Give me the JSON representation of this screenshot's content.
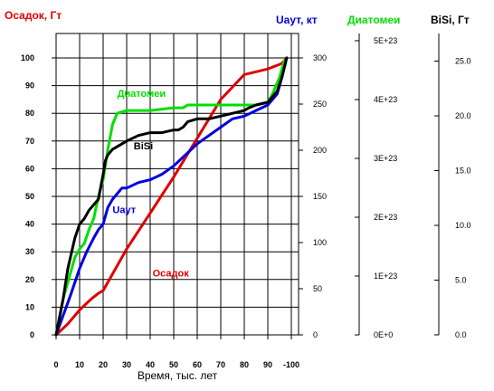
{
  "chart_data": {
    "type": "line",
    "xlabel": "Время,  тыс. лет",
    "axes": {
      "osadok": {
        "label": "Осадок, Гт",
        "color": "#e00000",
        "ticks": [
          "0",
          "10",
          "20",
          "30",
          "40",
          "50",
          "60",
          "70",
          "80",
          "90",
          "100"
        ]
      },
      "uaut": {
        "label": "Uаут, кт",
        "color": "#0000e0",
        "ticks": [
          "0",
          "50",
          "100",
          "150",
          "200",
          "250",
          "300"
        ]
      },
      "diatom": {
        "label": "Диатомеи",
        "color": "#00e000",
        "ticks": [
          "0E+0",
          "1E+23",
          "2E+23",
          "3E+23",
          "4E+23",
          "5E+23"
        ]
      },
      "bisi": {
        "label": "BiSi, Гт",
        "color": "#000000",
        "ticks": [
          "0.0",
          "5.0",
          "10.0",
          "15.0",
          "20.0",
          "25.0"
        ]
      }
    },
    "x_ticks": [
      "-100",
      "90",
      "80",
      "70",
      "60",
      "50",
      "40",
      "30",
      "20",
      "10",
      "0"
    ],
    "xlim": [
      -100,
      0
    ],
    "ylim": [
      0,
      100
    ],
    "grid": true,
    "series": [
      {
        "name": "Осадок",
        "color": "#e00000",
        "x": [
          -100,
          -95,
          -90,
          -85,
          -82,
          -80,
          -78,
          -76,
          -74,
          -70,
          -60,
          -50,
          -40,
          -30,
          -20,
          -10,
          -4,
          -2
        ],
        "y": [
          0,
          4,
          9,
          13,
          15,
          16,
          19,
          22,
          25,
          31,
          44,
          57,
          71,
          85,
          94,
          96,
          98,
          100
        ]
      },
      {
        "name": "Uаут",
        "color": "#0000e0",
        "x": [
          -100,
          -97,
          -94,
          -90,
          -87,
          -84,
          -82,
          -80,
          -79,
          -78,
          -76,
          -74,
          -72,
          -70,
          -65,
          -60,
          -55,
          -50,
          -45,
          -40,
          -35,
          -30,
          -25,
          -20,
          -15,
          -10,
          -6,
          -4,
          -2
        ],
        "y": [
          0,
          7,
          14,
          24,
          30,
          35,
          38,
          40,
          43,
          46,
          49,
          51,
          53,
          53,
          55,
          56,
          58,
          61,
          65,
          69,
          72,
          75,
          78,
          79,
          81,
          83,
          87,
          93,
          100
        ]
      },
      {
        "name": "Диатомеи",
        "color": "#00e000",
        "x": [
          -100,
          -97,
          -94,
          -92,
          -90,
          -88,
          -86,
          -84,
          -82,
          -80,
          -78,
          -76,
          -74,
          -70,
          -60,
          -50,
          -46,
          -44,
          -40,
          -30,
          -20,
          -15,
          -10,
          -8,
          -5,
          -3
        ],
        "y": [
          0,
          13,
          22,
          28,
          31,
          33,
          38,
          42,
          50,
          56,
          67,
          76,
          80,
          81,
          81,
          82,
          82,
          83,
          83,
          83,
          83,
          83,
          84,
          87,
          93,
          99
        ]
      },
      {
        "name": "BiSi",
        "color": "#000000",
        "x": [
          -100,
          -97,
          -95,
          -92,
          -90,
          -88,
          -86,
          -84,
          -82,
          -80,
          -79,
          -78,
          -77,
          -76,
          -74,
          -72,
          -70,
          -65,
          -60,
          -55,
          -50,
          -48,
          -46,
          -44,
          -40,
          -35,
          -30,
          -25,
          -20,
          -18,
          -15,
          -10,
          -6,
          -4,
          -2
        ],
        "y": [
          0,
          13,
          24,
          35,
          40,
          42,
          45,
          47,
          49,
          58,
          63,
          65,
          66,
          67,
          68,
          69,
          70,
          72,
          73,
          73,
          74,
          74,
          75,
          77,
          78,
          78,
          79,
          80,
          81,
          82,
          83,
          84,
          88,
          93,
          100
        ]
      }
    ],
    "annotations": [
      {
        "text": "Диатомеи",
        "color": "#00e000",
        "x": -74,
        "y": 86
      },
      {
        "text": "BiSi",
        "color": "#000000",
        "x": -67,
        "y": 67
      },
      {
        "text": "Uаут",
        "color": "#0000e0",
        "x": -76,
        "y": 44
      },
      {
        "text": "Осадок",
        "color": "#e00000",
        "x": -59,
        "y": 21
      }
    ]
  }
}
